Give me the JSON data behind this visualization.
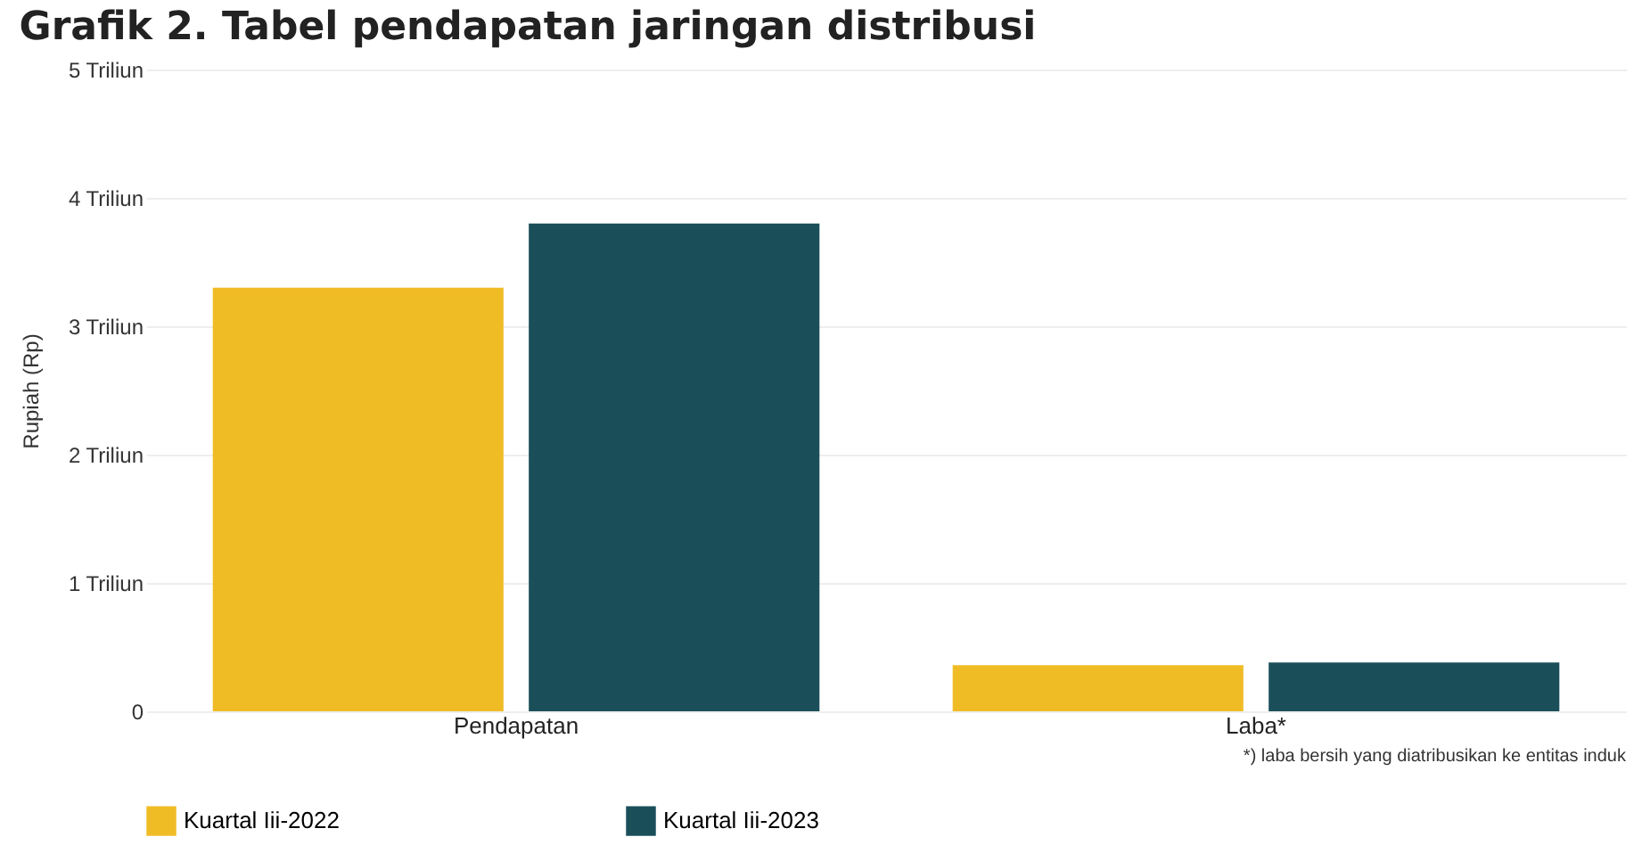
{
  "chart_data": {
    "type": "bar",
    "title": "Grafik 2. Tabel pendapatan jaringan distribusi",
    "ylabel": "Rupiah (Rp)",
    "categories": [
      "Pendapatan",
      "Laba*"
    ],
    "series": [
      {
        "name": "Kuartal Iii-2022",
        "color": "#f0bc26",
        "values": [
          3.3,
          0.36
        ]
      },
      {
        "name": "Kuartal Iii-2023",
        "color": "#1a4f5a",
        "values": [
          3.8,
          0.38
        ]
      }
    ],
    "ylim": [
      0,
      5
    ],
    "yticks": [
      0,
      {
        "value": 1,
        "label": "1 Triliun"
      },
      {
        "value": 2,
        "label": "2 Triliun"
      },
      {
        "value": 3,
        "label": "3 Triliun"
      },
      {
        "value": 4,
        "label": "4 Triliun"
      },
      {
        "value": 5,
        "label": "5 Triliun"
      }
    ],
    "grid": "y",
    "legend": "bottom",
    "annotations": [
      "*) laba bersih yang diatribusikan ke entitas induk"
    ]
  }
}
